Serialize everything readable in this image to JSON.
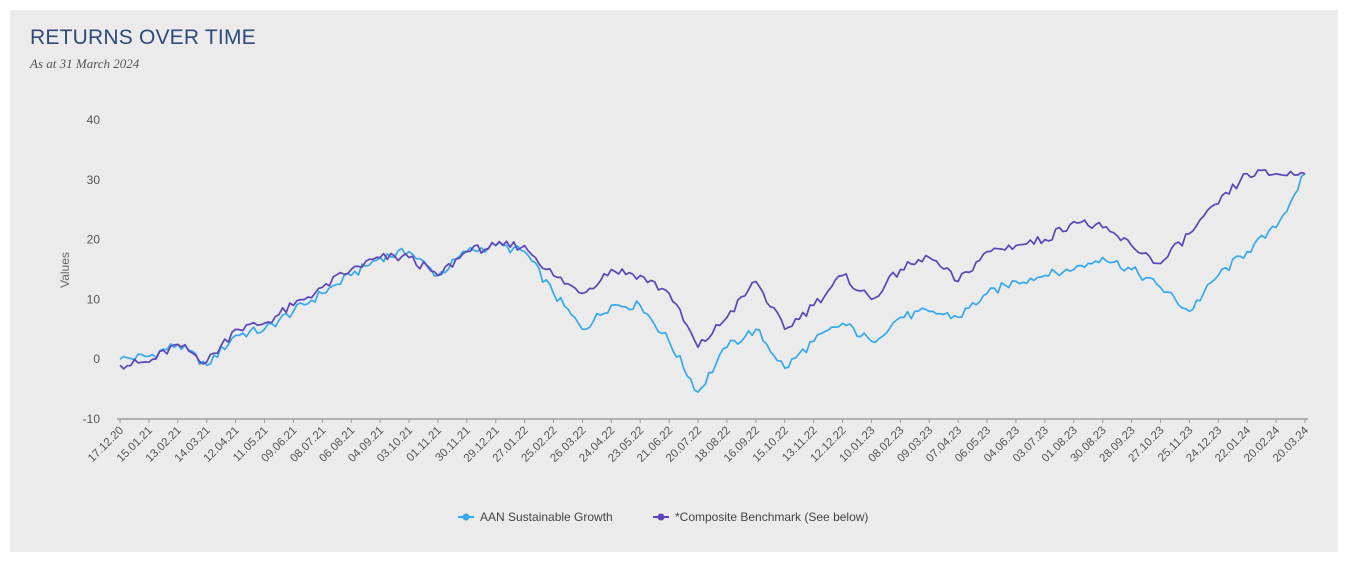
{
  "header": {
    "title": "RETURNS OVER TIME",
    "subtitle": "As at 31 March 2024"
  },
  "colors": {
    "fund": "#35a9eb",
    "benchmark": "#5b45b8",
    "axis": "#555555",
    "background": "#ebebeb"
  },
  "chart_data": {
    "type": "line",
    "title": "RETURNS OVER TIME",
    "subtitle": "As at 31 March 2024",
    "xlabel": "",
    "ylabel": "Values",
    "ylim": [
      -10,
      40
    ],
    "yticks": [
      -10,
      0,
      10,
      20,
      30,
      40
    ],
    "grid": false,
    "legend_position": "bottom",
    "x": [
      "17.12.20",
      "15.01.21",
      "13.02.21",
      "14.03.21",
      "12.04.21",
      "11.05.21",
      "09.06.21",
      "08.07.21",
      "06.08.21",
      "04.09.21",
      "03.10.21",
      "01.11.21",
      "30.11.21",
      "29.12.21",
      "27.01.22",
      "25.02.22",
      "26.03.22",
      "24.04.22",
      "23.05.22",
      "21.06.22",
      "20.07.22",
      "18.08.22",
      "16.09.22",
      "15.10.22",
      "13.11.22",
      "12.12.22",
      "10.01.23",
      "08.02.23",
      "09.03.23",
      "07.04.23",
      "06.05.23",
      "04.06.23",
      "03.07.23",
      "01.08.23",
      "30.08.23",
      "28.09.23",
      "27.10.23",
      "25.11.23",
      "24.12.23",
      "22.01.24",
      "20.02.24",
      "20.03.24"
    ],
    "series": [
      {
        "name": "AAN Sustainable Growth",
        "color": "#35a9eb",
        "values": [
          0,
          0.5,
          2.5,
          -1,
          4,
          5,
          8,
          11,
          14,
          17,
          18,
          14,
          18,
          19,
          18,
          11,
          5,
          9,
          9,
          3,
          -5.5,
          2,
          5,
          -1.5,
          3,
          6,
          3,
          7,
          8,
          7,
          11,
          13,
          14,
          15,
          17,
          15,
          12,
          8,
          14,
          18,
          22,
          31
        ]
      },
      {
        "name": "*Composite Benchmark (See below)",
        "color": "#5b45b8",
        "values": [
          -1,
          -0.5,
          2.5,
          -0.5,
          5,
          6,
          9,
          12,
          15,
          17,
          17,
          14,
          18,
          19,
          19,
          14,
          11,
          15,
          14,
          11,
          2,
          7,
          13,
          5,
          9,
          14,
          10,
          15,
          17,
          13,
          18,
          19,
          20,
          23,
          22,
          19,
          16,
          21,
          26,
          31,
          31,
          31
        ]
      }
    ]
  }
}
